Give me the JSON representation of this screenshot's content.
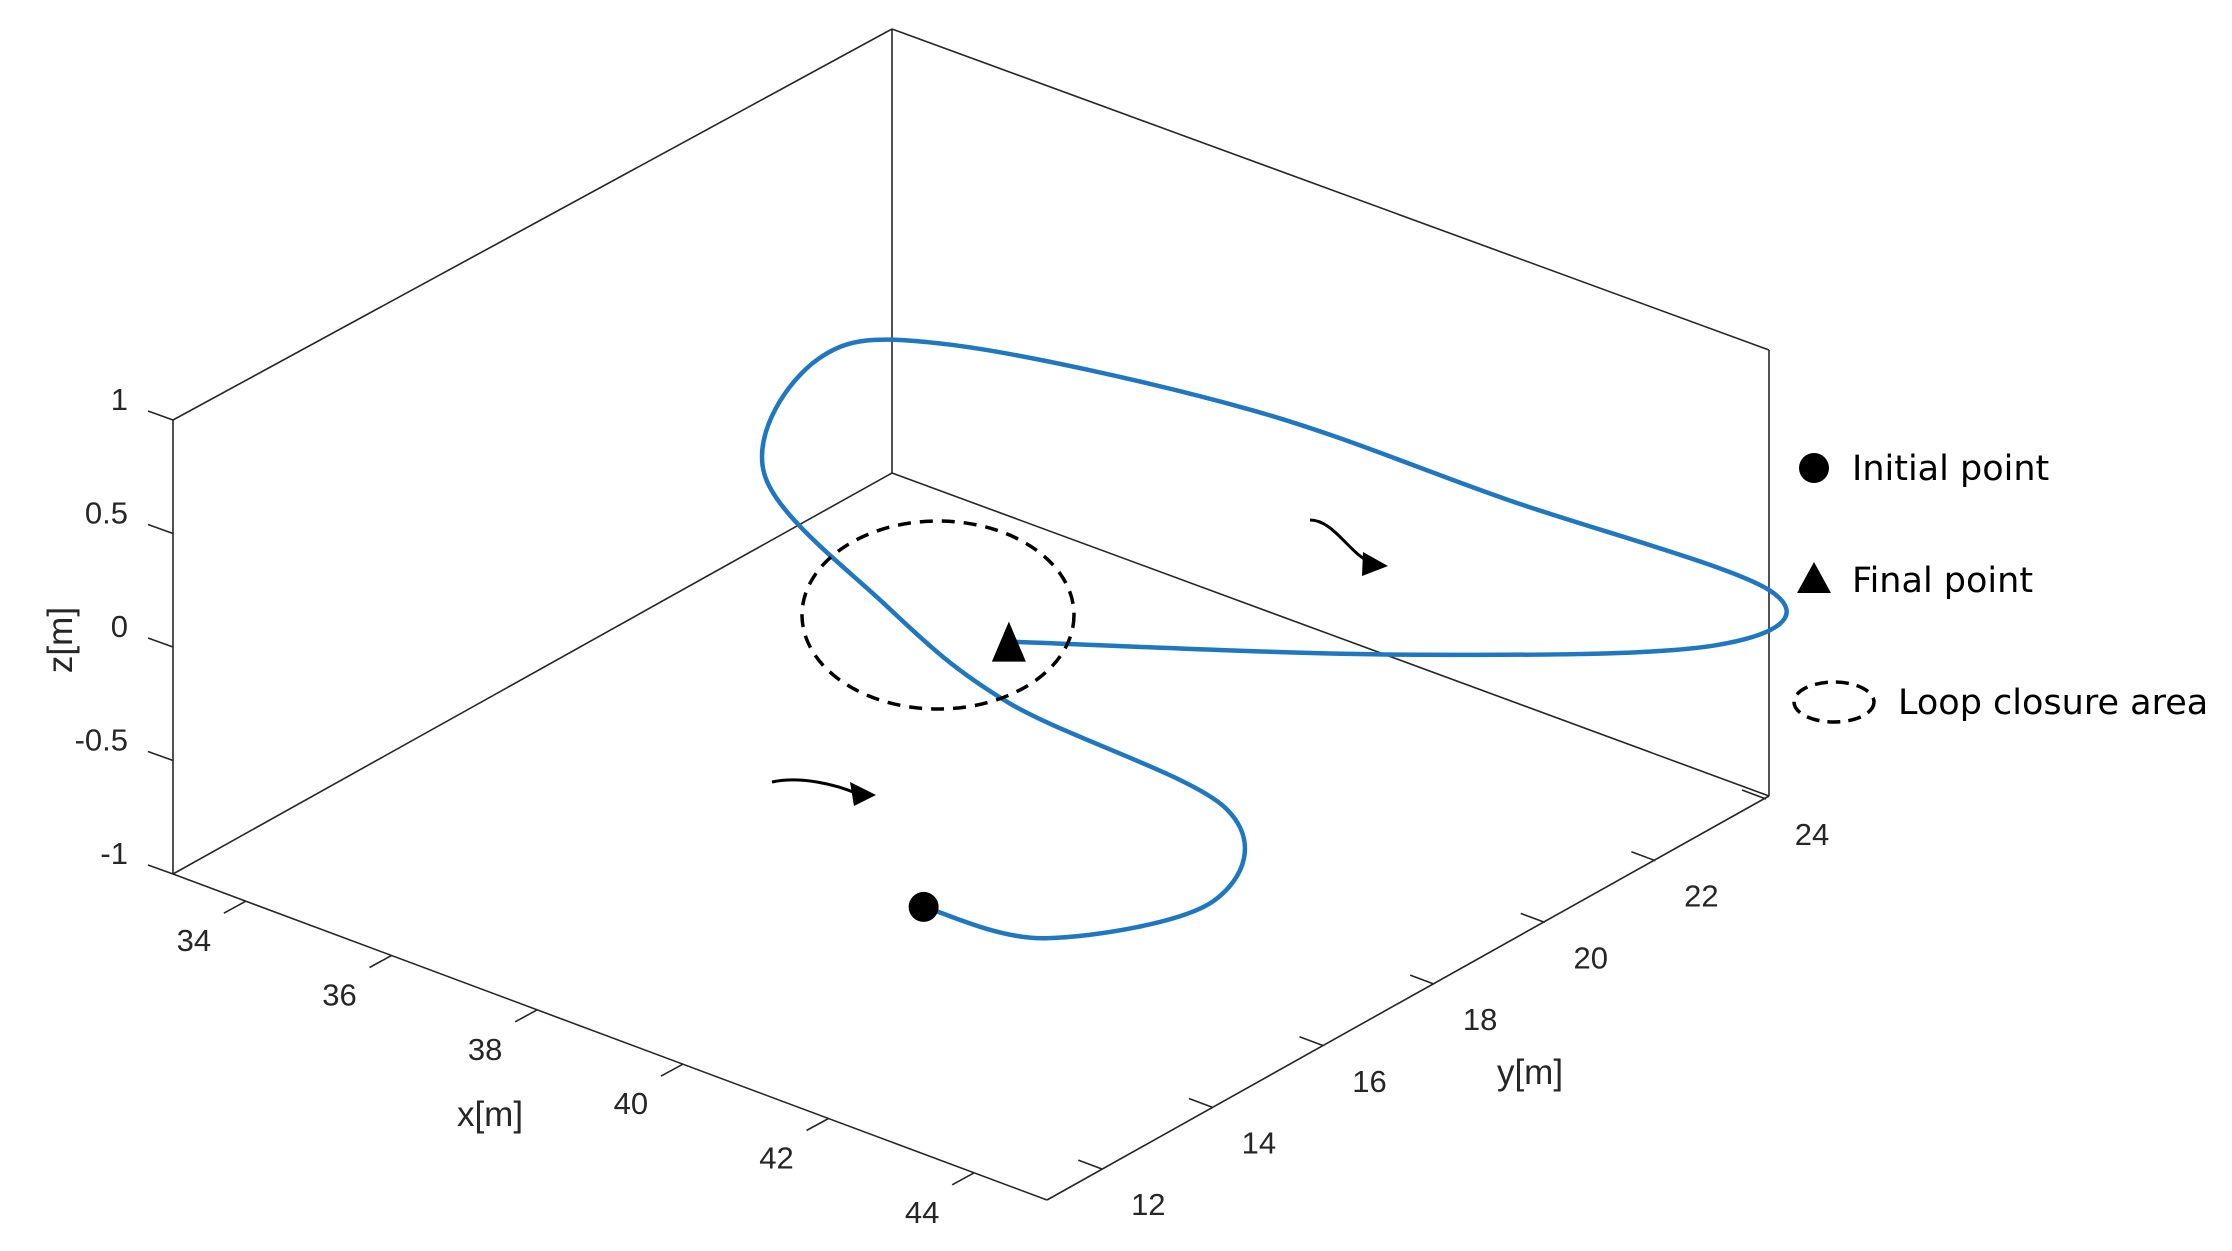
{
  "chart_data": {
    "type": "line",
    "projection": "3d",
    "xlabel": "x[m]",
    "ylabel": "y[m]",
    "zlabel": "z[m]",
    "xlim": [
      33,
      45
    ],
    "ylim": [
      11,
      24
    ],
    "zlim": [
      -1,
      1
    ],
    "x_ticks": [
      "34",
      "36",
      "38",
      "40",
      "42",
      "44"
    ],
    "y_ticks": [
      "12",
      "14",
      "16",
      "18",
      "20",
      "22",
      "24"
    ],
    "z_ticks": [
      "-1",
      "-0.5",
      "0",
      "0.5",
      "1"
    ],
    "grid": false,
    "box": true,
    "legend_position": "right",
    "colors": {
      "trajectory": "#1f77c2",
      "markers": "#000000",
      "axes": "#262626"
    },
    "series": [
      {
        "x": [
          40.8,
          42.4,
          43.8,
          43.2,
          40.3,
          38.2,
          35.8,
          35.4,
          36.4,
          39.4,
          42.2,
          45.0,
          45.0,
          42.7,
          40.3
        ],
        "y": [
          14.3,
          14.4,
          15.6,
          16.6,
          16.5,
          17.0,
          18.0,
          19.5,
          20.5,
          22.0,
          23.0,
          24.1,
          23.1,
          20.4,
          16.5
        ],
        "z": [
          -0.66,
          -0.62,
          -0.45,
          -0.25,
          -0.12,
          0.0,
          0.15,
          0.4,
          0.45,
          0.32,
          0.12,
          -0.1,
          -0.2,
          -0.15,
          0.15
        ]
      }
    ],
    "points": {
      "initial": {
        "x": 40.8,
        "y": 14.3,
        "z": -0.66
      },
      "final": {
        "x": 40.3,
        "y": 16.5,
        "z": 0.15
      }
    },
    "legend": [
      {
        "marker": "circle",
        "label": "Initial point"
      },
      {
        "marker": "triangle",
        "label": "Final point"
      },
      {
        "marker": "dashed-ellipse",
        "label": "Loop closure area"
      }
    ]
  }
}
